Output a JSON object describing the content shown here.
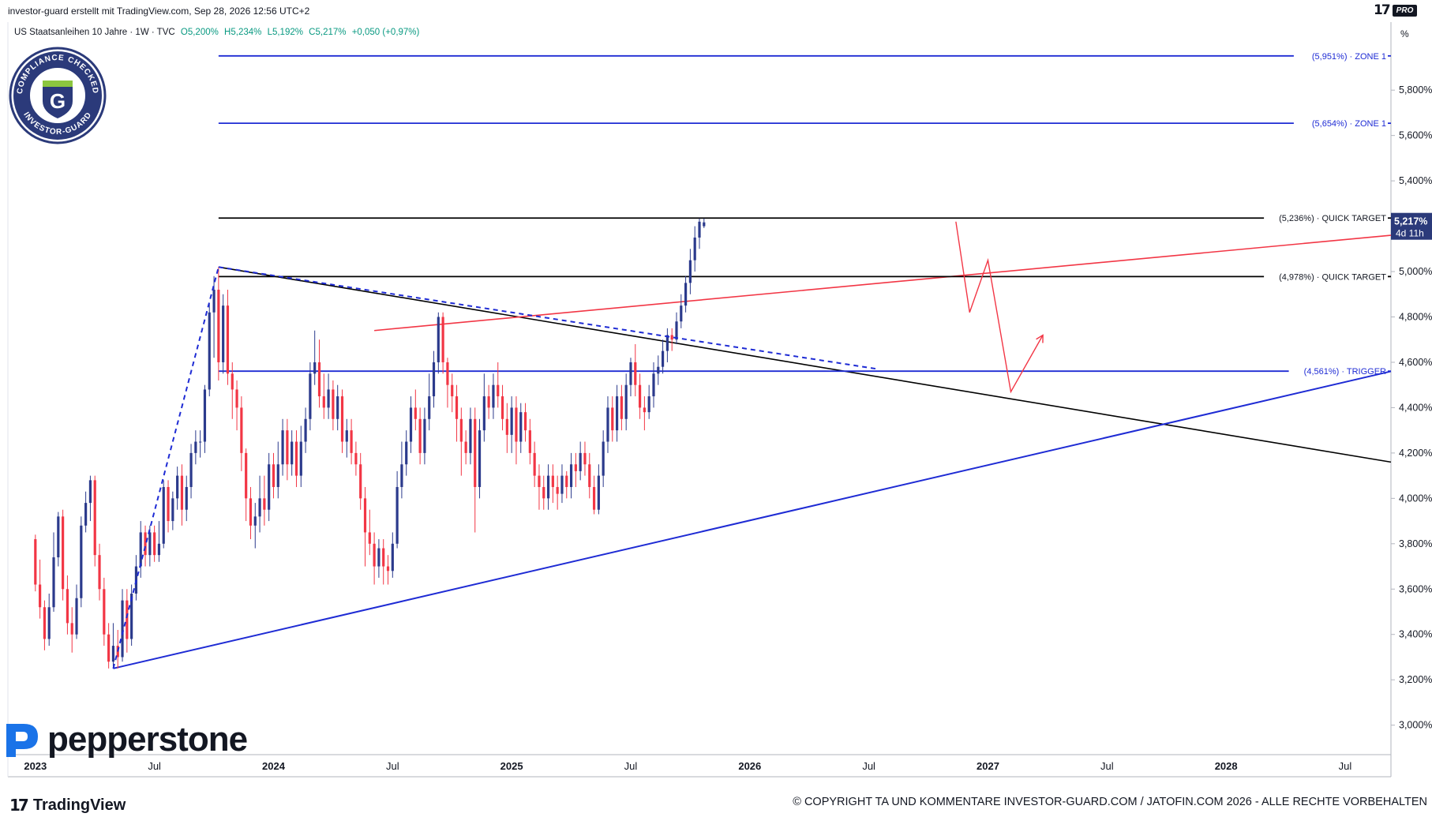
{
  "header": {
    "credit": "investor-guard erstellt mit TradingView.com, Sep 28, 2026 12:56 UTC+2",
    "symbol": "US Staatsanleihen 10 Jahre · 1W · TVC",
    "ohlc": {
      "o": "O5,200%",
      "h": "H5,234%",
      "l": "L5,192%",
      "c": "C5,217%",
      "chg": "+0,050 (+0,97%)"
    },
    "pro_badge": "PRO"
  },
  "stamp": {
    "text_top": "COMPLIANCE CHECKED",
    "text_bottom": "INVESTOR-GUARD",
    "letter": "G"
  },
  "brand": {
    "pepperstone": "pepperstone",
    "tradingview": "TradingView"
  },
  "copyright": "© COPYRIGHT TA UND KOMMENTARE INVESTOR-GUARD.COM / JATOFIN.COM 2026 - ALLE RECHTE VORBEHALTEN",
  "axis_unit": "%",
  "chart_data": {
    "type": "candlestick",
    "title": "US Staatsanleihen 10 Jahre",
    "timeframe": "1W",
    "y_ticks": [
      "5,800%",
      "5,600%",
      "5,400%",
      "5,200%",
      "5,000%",
      "4,800%",
      "4,600%",
      "4,400%",
      "4,200%",
      "4,000%",
      "3,800%",
      "3,600%",
      "3,400%",
      "3,200%",
      "3,000%"
    ],
    "y_tick_values": [
      5.8,
      5.6,
      5.4,
      5.2,
      5.0,
      4.8,
      4.6,
      4.4,
      4.2,
      4.0,
      3.8,
      3.6,
      3.4,
      3.2,
      3.0
    ],
    "ylim": [
      2.87,
      6.1
    ],
    "x_ticks": [
      {
        "label": "2023",
        "t": 0,
        "bold": true
      },
      {
        "label": "Jul",
        "t": 26
      },
      {
        "label": "2024",
        "t": 52,
        "bold": true
      },
      {
        "label": "Jul",
        "t": 78
      },
      {
        "label": "2025",
        "t": 104,
        "bold": true
      },
      {
        "label": "Jul",
        "t": 130
      },
      {
        "label": "2026",
        "t": 156,
        "bold": true
      },
      {
        "label": "Jul",
        "t": 182
      },
      {
        "label": "2027",
        "t": 208,
        "bold": true
      },
      {
        "label": "Jul",
        "t": 234
      },
      {
        "label": "2028",
        "t": 260,
        "bold": true
      },
      {
        "label": "Jul",
        "t": 286
      }
    ],
    "xlim": [
      -6,
      296
    ],
    "current_price": {
      "value": 5.217,
      "label": "5,217%",
      "countdown": "4d 11h"
    },
    "levels": [
      {
        "value": 5.951,
        "label": "(5,951%) · ZONE 1",
        "color": "#1e2bd4",
        "t_start": 40
      },
      {
        "value": 5.654,
        "label": "(5,654%) · ZONE 1",
        "color": "#1e2bd4",
        "t_start": 40
      },
      {
        "value": 5.236,
        "label": "(5,236%) · QUICK TARGET",
        "color": "#000000",
        "t_start": 40
      },
      {
        "value": 4.978,
        "label": "(4,978%) · QUICK TARGET",
        "color": "#000000",
        "t_start": 40
      },
      {
        "value": 4.561,
        "label": "(4,561%) · TRIGGER",
        "color": "#1e2bd4",
        "t_start": 40
      }
    ],
    "trendlines": [
      {
        "name": "resistance-downtrend",
        "color": "#000000",
        "width": 1.6,
        "points": [
          [
            40,
            5.02
          ],
          [
            296,
            4.16
          ]
        ]
      },
      {
        "name": "support-uptrend",
        "color": "#1e2bd4",
        "width": 2,
        "points": [
          [
            17,
            3.25
          ],
          [
            296,
            4.56
          ]
        ]
      },
      {
        "name": "red-rising-line",
        "color": "#f23645",
        "width": 1.6,
        "points": [
          [
            74,
            4.74
          ],
          [
            296,
            5.16
          ]
        ]
      },
      {
        "name": "blue-dashed-rally",
        "color": "#1e2bd4",
        "width": 2,
        "dash": "6,5",
        "points": [
          [
            17,
            3.25
          ],
          [
            40,
            5.02
          ]
        ]
      },
      {
        "name": "blue-dashed-along-resistance",
        "color": "#1e2bd4",
        "width": 2,
        "dash": "6,5",
        "points": [
          [
            40,
            5.02
          ],
          [
            184,
            4.57
          ]
        ]
      }
    ],
    "projection": {
      "color": "#f23645",
      "points": [
        [
          201,
          5.22
        ],
        [
          204,
          4.82
        ],
        [
          208,
          5.05
        ],
        [
          213,
          4.47
        ],
        [
          220,
          4.72
        ]
      ]
    },
    "candles_ohlc": [
      [
        0,
        3.82,
        3.62,
        3.84,
        3.59
      ],
      [
        1,
        3.62,
        3.52,
        3.73,
        3.47
      ],
      [
        2,
        3.52,
        3.38,
        3.55,
        3.33
      ],
      [
        3,
        3.38,
        3.52,
        3.58,
        3.35
      ],
      [
        4,
        3.52,
        3.74,
        3.85,
        3.5
      ],
      [
        5,
        3.74,
        3.92,
        3.94,
        3.7
      ],
      [
        6,
        3.92,
        3.6,
        3.95,
        3.55
      ],
      [
        7,
        3.6,
        3.45,
        3.66,
        3.4
      ],
      [
        8,
        3.45,
        3.4,
        3.52,
        3.32
      ],
      [
        9,
        3.4,
        3.56,
        3.62,
        3.38
      ],
      [
        10,
        3.56,
        3.88,
        3.92,
        3.52
      ],
      [
        11,
        3.88,
        3.98,
        4.03,
        3.85
      ],
      [
        12,
        3.98,
        4.08,
        4.1,
        3.9
      ],
      [
        13,
        4.08,
        3.75,
        4.1,
        3.7
      ],
      [
        14,
        3.75,
        3.6,
        3.8,
        3.55
      ],
      [
        15,
        3.6,
        3.4,
        3.65,
        3.35
      ],
      [
        16,
        3.4,
        3.28,
        3.45,
        3.25
      ],
      [
        17,
        3.28,
        3.35,
        3.45,
        3.26
      ],
      [
        18,
        3.35,
        3.3,
        3.42,
        3.25
      ],
      [
        19,
        3.3,
        3.55,
        3.6,
        3.28
      ],
      [
        20,
        3.55,
        3.38,
        3.6,
        3.32
      ],
      [
        21,
        3.38,
        3.58,
        3.62,
        3.35
      ],
      [
        22,
        3.58,
        3.7,
        3.75,
        3.55
      ],
      [
        23,
        3.7,
        3.85,
        3.9,
        3.65
      ],
      [
        24,
        3.85,
        3.75,
        3.88,
        3.7
      ],
      [
        25,
        3.75,
        3.85,
        3.88,
        3.7
      ],
      [
        26,
        3.85,
        3.75,
        3.88,
        3.72
      ],
      [
        27,
        3.75,
        3.8,
        3.9,
        3.72
      ],
      [
        28,
        3.8,
        4.05,
        4.08,
        3.78
      ],
      [
        29,
        4.05,
        3.9,
        4.08,
        3.85
      ],
      [
        30,
        3.9,
        4.0,
        4.03,
        3.86
      ],
      [
        31,
        4.0,
        4.1,
        4.14,
        3.95
      ],
      [
        32,
        4.1,
        3.95,
        4.15,
        3.88
      ],
      [
        33,
        3.95,
        4.05,
        4.1,
        3.9
      ],
      [
        34,
        4.05,
        4.2,
        4.24,
        4.0
      ],
      [
        35,
        4.2,
        4.25,
        4.3,
        4.15
      ],
      [
        36,
        4.25,
        4.25,
        4.3,
        4.18
      ],
      [
        37,
        4.25,
        4.48,
        4.5,
        4.2
      ],
      [
        38,
        4.48,
        4.82,
        4.86,
        4.45
      ],
      [
        39,
        4.82,
        4.92,
        4.98,
        4.62
      ],
      [
        40,
        4.92,
        4.6,
        5.02,
        4.52
      ],
      [
        41,
        4.6,
        4.85,
        4.9,
        4.55
      ],
      [
        42,
        4.85,
        4.55,
        4.92,
        4.5
      ],
      [
        43,
        4.55,
        4.48,
        4.6,
        4.35
      ],
      [
        44,
        4.48,
        4.4,
        4.52,
        4.3
      ],
      [
        45,
        4.4,
        4.2,
        4.45,
        4.12
      ],
      [
        46,
        4.2,
        4.0,
        4.22,
        3.9
      ],
      [
        47,
        4.0,
        3.88,
        4.05,
        3.82
      ],
      [
        48,
        3.88,
        3.92,
        3.98,
        3.78
      ],
      [
        49,
        3.92,
        4.0,
        4.1,
        3.85
      ],
      [
        50,
        4.0,
        3.95,
        4.1,
        3.88
      ],
      [
        51,
        3.95,
        4.15,
        4.2,
        3.9
      ],
      [
        52,
        4.15,
        4.05,
        4.2,
        4.0
      ],
      [
        53,
        4.05,
        4.15,
        4.25,
        4.0
      ],
      [
        54,
        4.15,
        4.3,
        4.35,
        4.1
      ],
      [
        55,
        4.3,
        4.15,
        4.35,
        4.08
      ],
      [
        56,
        4.15,
        4.25,
        4.3,
        4.1
      ],
      [
        57,
        4.25,
        4.1,
        4.3,
        4.05
      ],
      [
        58,
        4.1,
        4.25,
        4.32,
        4.05
      ],
      [
        59,
        4.25,
        4.35,
        4.4,
        4.2
      ],
      [
        60,
        4.35,
        4.55,
        4.6,
        4.3
      ],
      [
        61,
        4.55,
        4.6,
        4.74,
        4.5
      ],
      [
        62,
        4.6,
        4.45,
        4.7,
        4.4
      ],
      [
        63,
        4.45,
        4.4,
        4.55,
        4.35
      ],
      [
        64,
        4.4,
        4.48,
        4.55,
        4.35
      ],
      [
        65,
        4.48,
        4.35,
        4.52,
        4.3
      ],
      [
        66,
        4.35,
        4.45,
        4.5,
        4.3
      ],
      [
        67,
        4.45,
        4.25,
        4.48,
        4.2
      ],
      [
        68,
        4.25,
        4.3,
        4.35,
        4.18
      ],
      [
        69,
        4.3,
        4.2,
        4.35,
        4.15
      ],
      [
        70,
        4.2,
        4.15,
        4.25,
        4.1
      ],
      [
        71,
        4.15,
        4.0,
        4.2,
        3.95
      ],
      [
        72,
        4.0,
        3.85,
        4.05,
        3.7
      ],
      [
        73,
        3.85,
        3.8,
        3.95,
        3.75
      ],
      [
        74,
        3.8,
        3.7,
        3.85,
        3.62
      ],
      [
        75,
        3.7,
        3.78,
        3.82,
        3.65
      ],
      [
        76,
        3.78,
        3.7,
        3.82,
        3.62
      ],
      [
        77,
        3.7,
        3.68,
        3.75,
        3.62
      ],
      [
        78,
        3.68,
        3.8,
        3.85,
        3.65
      ],
      [
        79,
        3.8,
        4.05,
        4.12,
        3.78
      ],
      [
        80,
        4.05,
        4.15,
        4.25,
        4.0
      ],
      [
        81,
        4.15,
        4.25,
        4.3,
        4.1
      ],
      [
        82,
        4.25,
        4.4,
        4.45,
        4.2
      ],
      [
        83,
        4.4,
        4.35,
        4.48,
        4.3
      ],
      [
        84,
        4.35,
        4.2,
        4.4,
        4.15
      ],
      [
        85,
        4.2,
        4.35,
        4.4,
        4.15
      ],
      [
        86,
        4.35,
        4.45,
        4.55,
        4.3
      ],
      [
        87,
        4.45,
        4.6,
        4.65,
        4.4
      ],
      [
        88,
        4.6,
        4.8,
        4.82,
        4.55
      ],
      [
        89,
        4.8,
        4.6,
        4.82,
        4.55
      ],
      [
        90,
        4.6,
        4.5,
        4.62,
        4.4
      ],
      [
        91,
        4.5,
        4.45,
        4.55,
        4.38
      ],
      [
        92,
        4.45,
        4.35,
        4.5,
        4.25
      ],
      [
        93,
        4.35,
        4.25,
        4.4,
        4.1
      ],
      [
        94,
        4.25,
        4.2,
        4.3,
        4.15
      ],
      [
        95,
        4.2,
        4.35,
        4.4,
        4.15
      ],
      [
        96,
        4.35,
        4.05,
        4.4,
        3.85
      ],
      [
        97,
        4.05,
        4.3,
        4.35,
        4.0
      ],
      [
        98,
        4.3,
        4.45,
        4.55,
        4.25
      ],
      [
        99,
        4.45,
        4.4,
        4.5,
        4.35
      ],
      [
        100,
        4.4,
        4.5,
        4.55,
        4.35
      ],
      [
        101,
        4.5,
        4.45,
        4.6,
        4.4
      ],
      [
        102,
        4.45,
        4.35,
        4.5,
        4.3
      ],
      [
        103,
        4.35,
        4.28,
        4.42,
        4.2
      ],
      [
        104,
        4.28,
        4.4,
        4.45,
        4.2
      ],
      [
        105,
        4.4,
        4.25,
        4.45,
        4.15
      ],
      [
        106,
        4.25,
        4.38,
        4.42,
        4.2
      ],
      [
        107,
        4.38,
        4.3,
        4.42,
        4.25
      ],
      [
        108,
        4.3,
        4.2,
        4.35,
        4.15
      ],
      [
        109,
        4.2,
        4.1,
        4.25,
        4.05
      ],
      [
        110,
        4.1,
        4.05,
        4.15,
        3.95
      ],
      [
        111,
        4.05,
        4.0,
        4.1,
        3.95
      ],
      [
        112,
        4.0,
        4.1,
        4.15,
        3.95
      ],
      [
        113,
        4.1,
        4.05,
        4.15,
        3.98
      ],
      [
        114,
        4.05,
        4.02,
        4.1,
        3.95
      ],
      [
        115,
        4.02,
        4.1,
        4.15,
        3.98
      ],
      [
        116,
        4.1,
        4.05,
        4.12,
        4.0
      ],
      [
        117,
        4.05,
        4.15,
        4.2,
        4.0
      ],
      [
        118,
        4.15,
        4.12,
        4.2,
        4.05
      ],
      [
        119,
        4.12,
        4.2,
        4.25,
        4.08
      ],
      [
        120,
        4.2,
        4.15,
        4.25,
        4.1
      ],
      [
        121,
        4.15,
        4.05,
        4.2,
        4.0
      ],
      [
        122,
        4.05,
        3.95,
        4.1,
        3.93
      ],
      [
        123,
        3.95,
        4.1,
        4.15,
        3.93
      ],
      [
        124,
        4.1,
        4.25,
        4.3,
        4.05
      ],
      [
        125,
        4.25,
        4.4,
        4.45,
        4.2
      ],
      [
        126,
        4.4,
        4.3,
        4.45,
        4.25
      ],
      [
        127,
        4.3,
        4.45,
        4.5,
        4.25
      ],
      [
        128,
        4.45,
        4.35,
        4.5,
        4.3
      ],
      [
        129,
        4.35,
        4.5,
        4.55,
        4.3
      ],
      [
        130,
        4.5,
        4.6,
        4.62,
        4.45
      ],
      [
        131,
        4.6,
        4.5,
        4.68,
        4.45
      ],
      [
        132,
        4.5,
        4.4,
        4.55,
        4.35
      ],
      [
        133,
        4.4,
        4.38,
        4.45,
        4.3
      ],
      [
        134,
        4.38,
        4.45,
        4.5,
        4.35
      ],
      [
        135,
        4.45,
        4.55,
        4.6,
        4.4
      ],
      [
        136,
        4.55,
        4.58,
        4.63,
        4.5
      ],
      [
        137,
        4.58,
        4.65,
        4.7,
        4.55
      ],
      [
        138,
        4.65,
        4.72,
        4.75,
        4.6
      ],
      [
        139,
        4.72,
        4.7,
        4.75,
        4.65
      ],
      [
        140,
        4.7,
        4.78,
        4.82,
        4.68
      ],
      [
        141,
        4.78,
        4.85,
        4.9,
        4.75
      ],
      [
        142,
        4.85,
        4.95,
        4.98,
        4.82
      ],
      [
        143,
        4.95,
        5.05,
        5.1,
        4.9
      ],
      [
        144,
        5.05,
        5.15,
        5.2,
        5.0
      ],
      [
        145,
        5.15,
        5.22,
        5.234,
        5.1
      ],
      [
        146,
        5.2,
        5.217,
        5.234,
        5.192
      ]
    ],
    "candle_t_offset": 0
  }
}
